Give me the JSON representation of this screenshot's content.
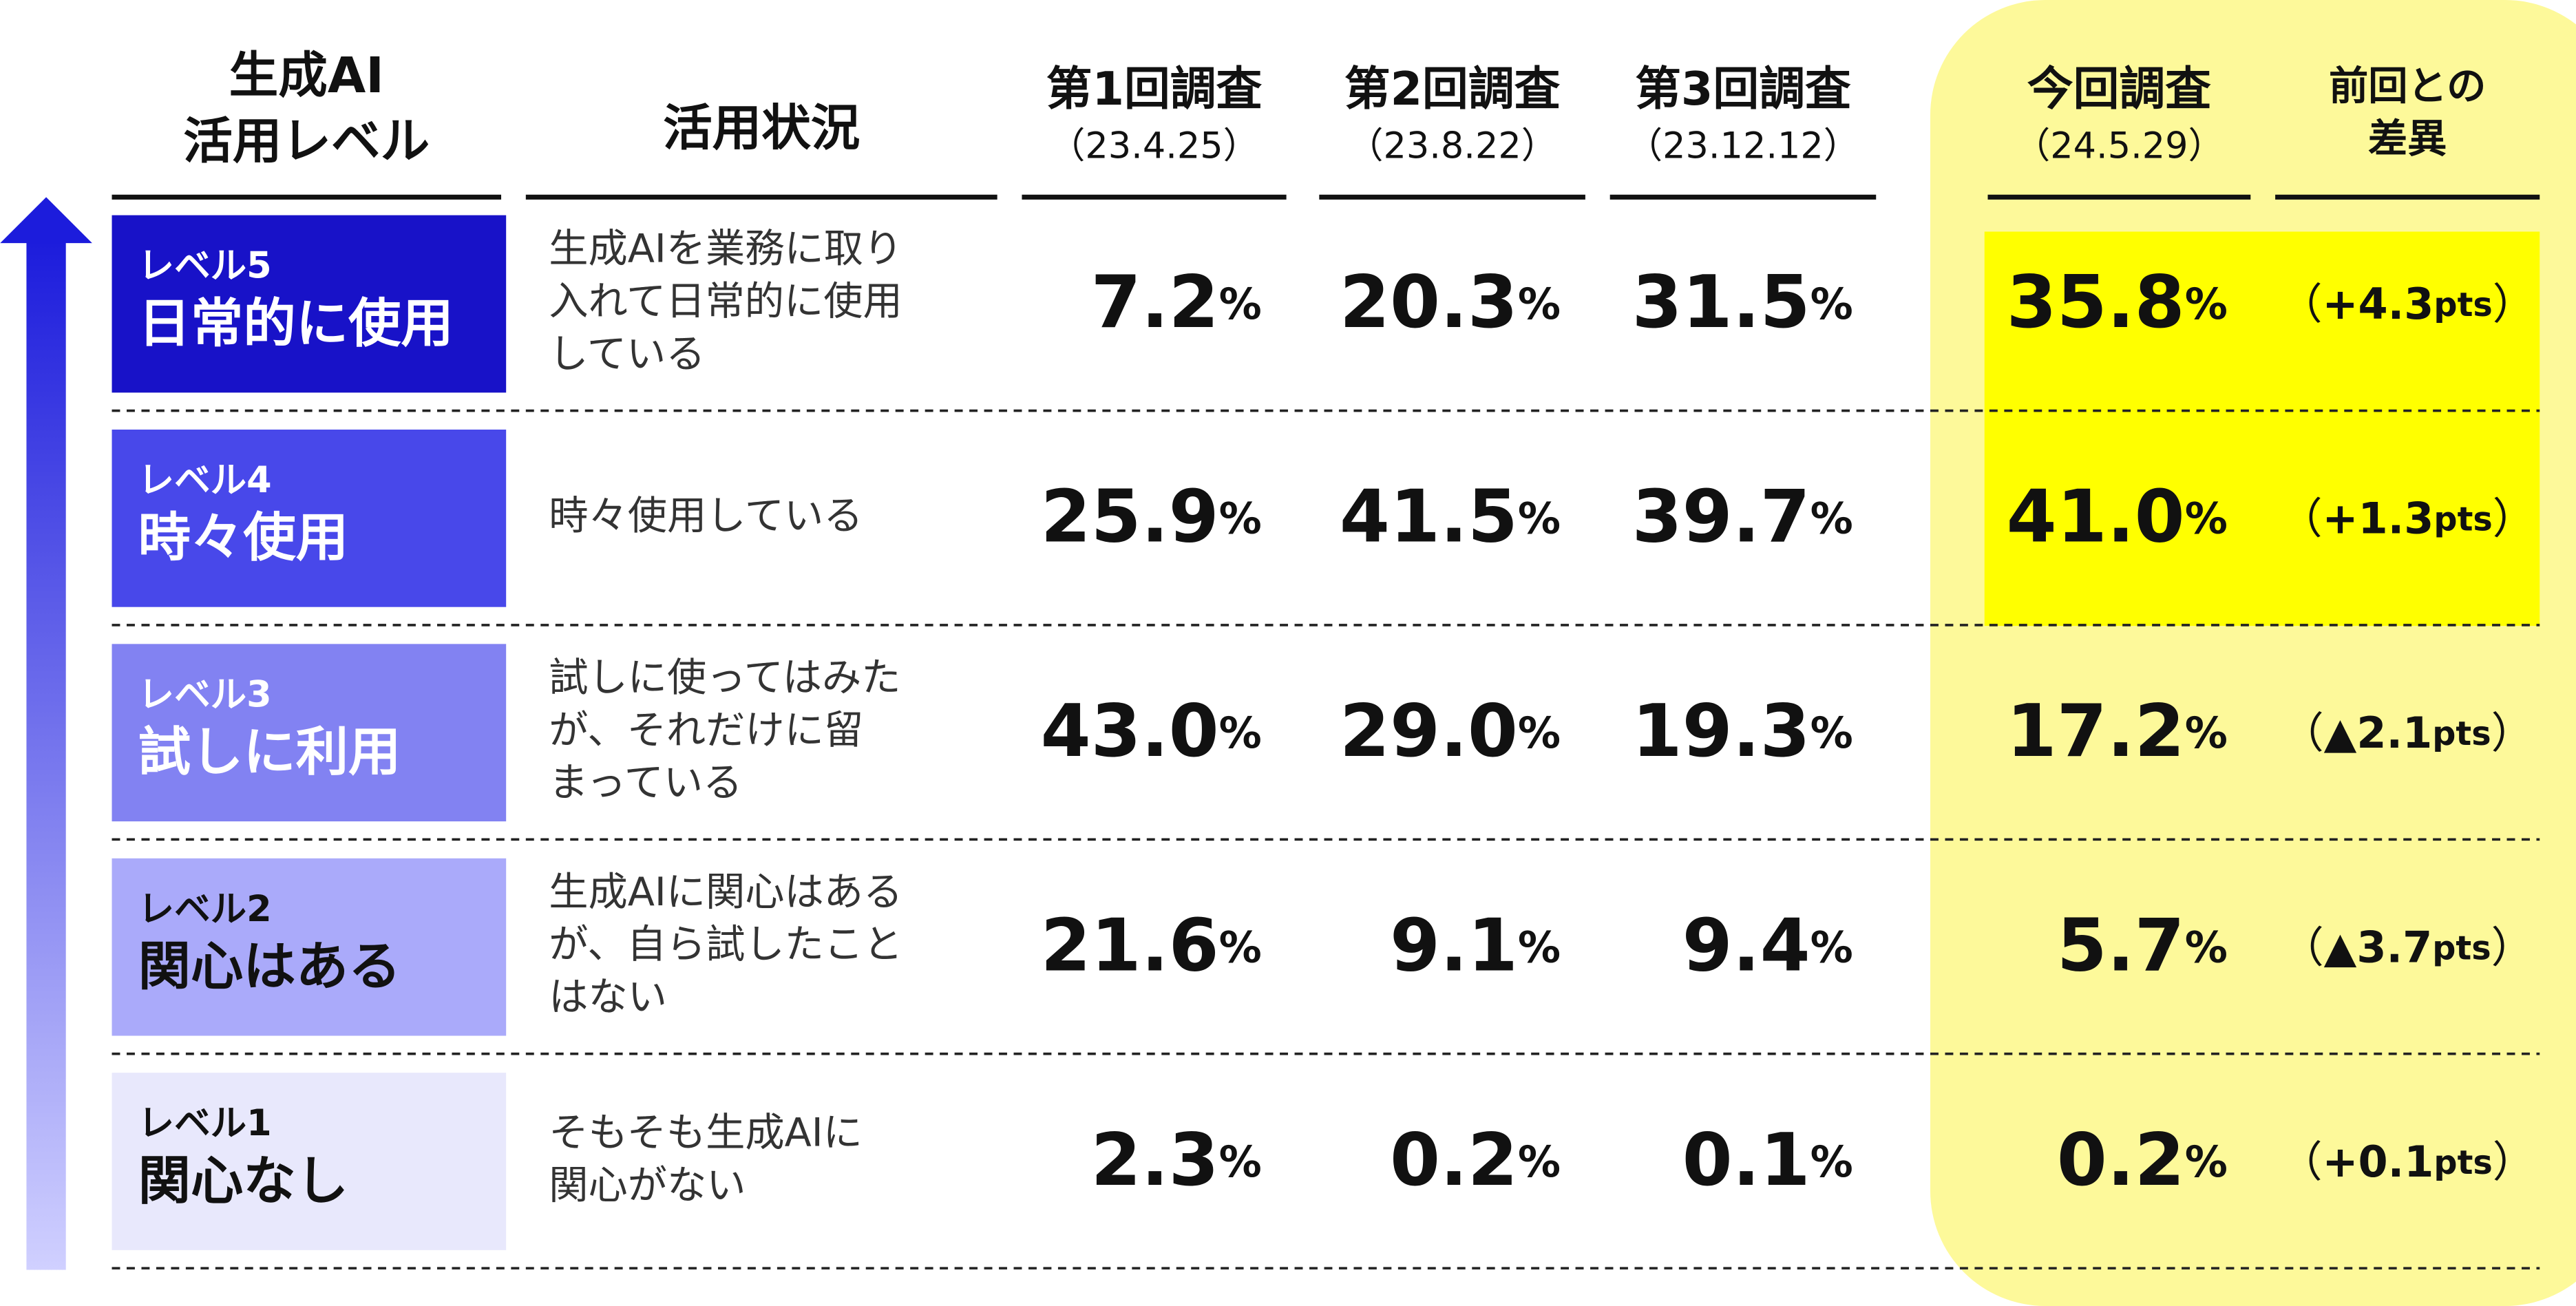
{
  "header": {
    "level": [
      "生成AI",
      "活用レベル"
    ],
    "usage": "活用状況",
    "surveys": [
      {
        "name": "第1回調査",
        "date": "（23.4.25）"
      },
      {
        "name": "第2回調査",
        "date": "（23.8.22）"
      },
      {
        "name": "第3回調査",
        "date": "（23.12.12）"
      },
      {
        "name": "今回調査",
        "date": "（24.5.29）"
      }
    ],
    "diff": [
      "前回との",
      "差異"
    ]
  },
  "table": {
    "unit": "%",
    "diff_open": "（",
    "diff_close": "）",
    "diff_unit": "pts",
    "rows": [
      {
        "level": "レベル5",
        "name": "日常的に使用",
        "description": [
          "生成AIを業務に取り",
          "入れて日常的に使用",
          "している"
        ],
        "values": [
          "7.2",
          "20.3",
          "31.5",
          "35.8"
        ],
        "diff": "+4.3"
      },
      {
        "level": "レベル4",
        "name": "時々使用",
        "description": [
          "時々使用している"
        ],
        "values": [
          "25.9",
          "41.5",
          "39.7",
          "41.0"
        ],
        "diff": "+1.3"
      },
      {
        "level": "レベル3",
        "name": "試しに利用",
        "description": [
          "試しに使ってはみた",
          "が、それだけに留",
          "まっている"
        ],
        "values": [
          "43.0",
          "29.0",
          "19.3",
          "17.2"
        ],
        "diff": "▲2.1"
      },
      {
        "level": "レベル2",
        "name": "関心はある",
        "description": [
          "生成AIに関心はある",
          "が、自ら試したこと",
          "はない"
        ],
        "values": [
          "21.6",
          "9.1",
          "9.4",
          "5.7"
        ],
        "diff": "▲3.7"
      },
      {
        "level": "レベル1",
        "name": "関心なし",
        "description": [
          "そもそも生成AIに",
          "関心がない"
        ],
        "values": [
          "2.3",
          "0.2",
          "0.1",
          "0.2"
        ],
        "diff": "+0.1"
      }
    ]
  }
}
